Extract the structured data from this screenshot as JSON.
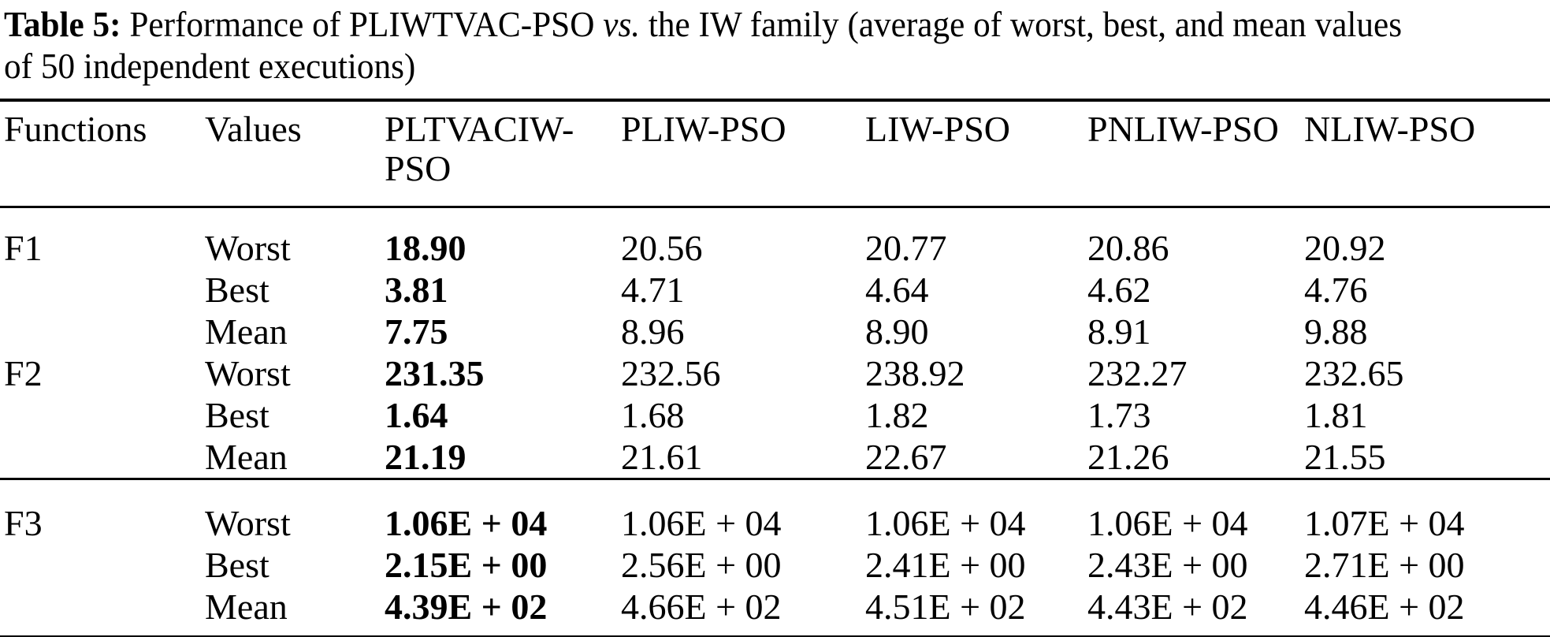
{
  "title": {
    "label": "Table 5:",
    "line1_pre_vs": "Performance of PLIWTVAC-PSO",
    "vs": "vs.",
    "line1_post_vs": "the IW family (average of worst, best, and mean values",
    "line2": "of 50 independent executions)"
  },
  "table": {
    "columns": [
      "Functions",
      "Values",
      "PLTVACIW-\nPSO",
      "PLIW-PSO",
      "LIW-PSO",
      "PNLIW-PSO",
      "NLIW-PSO"
    ],
    "sections": [
      {
        "rows": [
          {
            "function": "F1",
            "value_type": "Worst",
            "cells": [
              "18.90",
              "20.56",
              "20.77",
              "20.86",
              "20.92"
            ]
          },
          {
            "function": "",
            "value_type": "Best",
            "cells": [
              "3.81",
              "4.71",
              "4.64",
              "4.62",
              "4.76"
            ]
          },
          {
            "function": "",
            "value_type": "Mean",
            "cells": [
              "7.75",
              "8.96",
              "8.90",
              "8.91",
              "9.88"
            ]
          },
          {
            "function": "F2",
            "value_type": "Worst",
            "cells": [
              "231.35",
              "232.56",
              "238.92",
              "232.27",
              "232.65"
            ]
          },
          {
            "function": "",
            "value_type": "Best",
            "cells": [
              "1.64",
              "1.68",
              "1.82",
              "1.73",
              "1.81"
            ]
          },
          {
            "function": "",
            "value_type": "Mean",
            "cells": [
              "21.19",
              "21.61",
              "22.67",
              "21.26",
              "21.55"
            ]
          }
        ]
      },
      {
        "rows": [
          {
            "function": "F3",
            "value_type": "Worst",
            "cells": [
              "1.06E + 04",
              "1.06E + 04",
              "1.06E + 04",
              "1.06E + 04",
              "1.07E + 04"
            ]
          },
          {
            "function": "",
            "value_type": "Best",
            "cells": [
              "2.15E + 00",
              "2.56E + 00",
              "2.41E + 00",
              "2.43E + 00",
              "2.71E + 00"
            ]
          },
          {
            "function": "",
            "value_type": "Mean",
            "cells": [
              "4.39E + 02",
              "4.66E + 02",
              "4.51E + 02",
              "4.43E + 02",
              "4.46E + 02"
            ]
          }
        ]
      }
    ]
  }
}
